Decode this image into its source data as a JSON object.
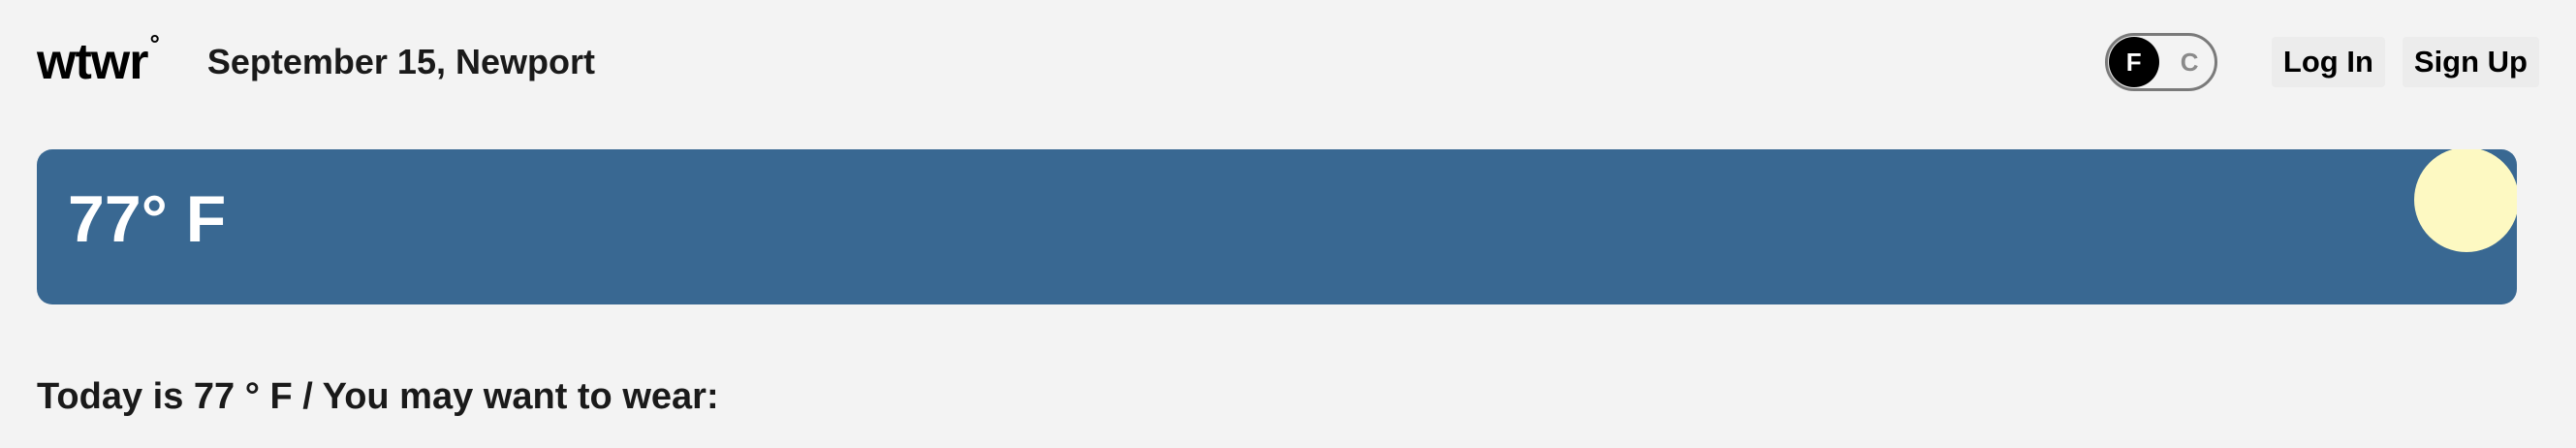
{
  "header": {
    "logo_text": "wtwr",
    "logo_degree": "°",
    "date_location": "September 15, Newport",
    "unit_toggle": {
      "active_label": "F",
      "inactive_label": "C",
      "selected": "F"
    },
    "login_label": "Log In",
    "signup_label": "Sign Up"
  },
  "weather_card": {
    "temperature_text": "77° F",
    "background_color": "#396892",
    "sun_color": "#fdf9c2",
    "icon": "sun-icon"
  },
  "main": {
    "recommendation_text": "Today is 77 ° F / You may want to wear:"
  }
}
